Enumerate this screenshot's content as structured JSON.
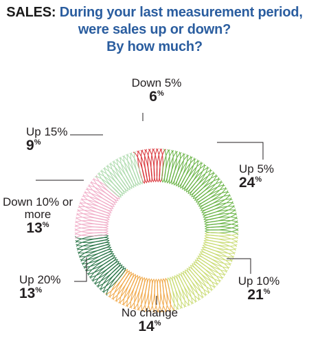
{
  "title": {
    "prefix": "SALES:",
    "line1": "During your last measurement period,",
    "line2": "were sales up or down?",
    "line3": "By how much?"
  },
  "chart_data": {
    "type": "pie",
    "style": "coil ring",
    "categories": [
      "Down 5%",
      "Up 5%",
      "Up 10%",
      "No change",
      "Up 20%",
      "Down 10% or more",
      "Up 15%"
    ],
    "values": [
      6,
      24,
      21,
      14,
      13,
      13,
      9
    ],
    "unit": "%",
    "colors": [
      "#d7282f",
      "#5fae3a",
      "#c7d96b",
      "#f0a23c",
      "#1c6b3c",
      "#f0a9c4",
      "#a8d8a8"
    ]
  }
}
